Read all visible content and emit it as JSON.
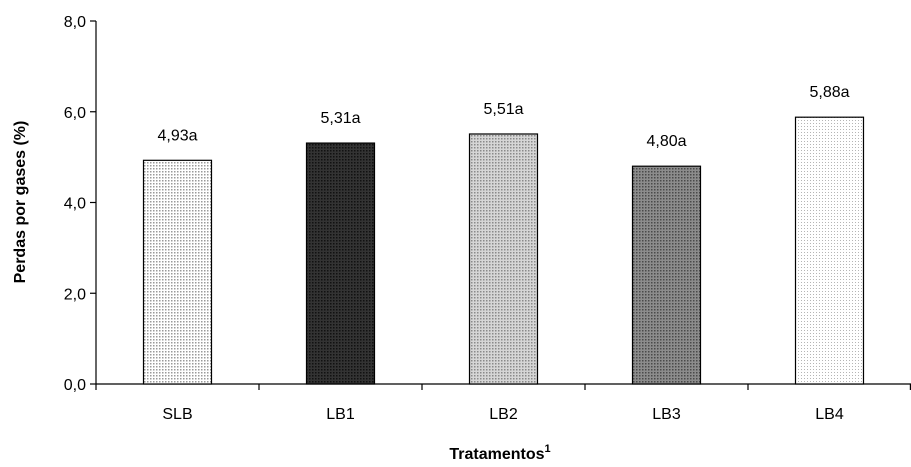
{
  "chart_data": {
    "type": "bar",
    "categories": [
      "SLB",
      "LB1",
      "LB2",
      "LB3",
      "LB4"
    ],
    "values": [
      4.93,
      5.31,
      5.51,
      4.8,
      5.88
    ],
    "data_labels": [
      "4,93a",
      "5,31a",
      "5,51a",
      "4,80a",
      "5,88a"
    ],
    "xlabel": "Tratamentos",
    "xlabel_superscript": "1",
    "ylabel": "Perdas por gases (%)",
    "ylim": [
      0,
      8
    ],
    "yticks": [
      0,
      2,
      4,
      6,
      8
    ],
    "ytick_labels": [
      "0,0",
      "2,0",
      "4,0",
      "6,0",
      "8,0"
    ],
    "grid": false,
    "legend": "none",
    "bar_fills": [
      "#dcdcdc",
      "#3a3a3a",
      "#c4c4c4",
      "#787878",
      "#f0f0f0"
    ],
    "bar_outline": "#000000"
  }
}
